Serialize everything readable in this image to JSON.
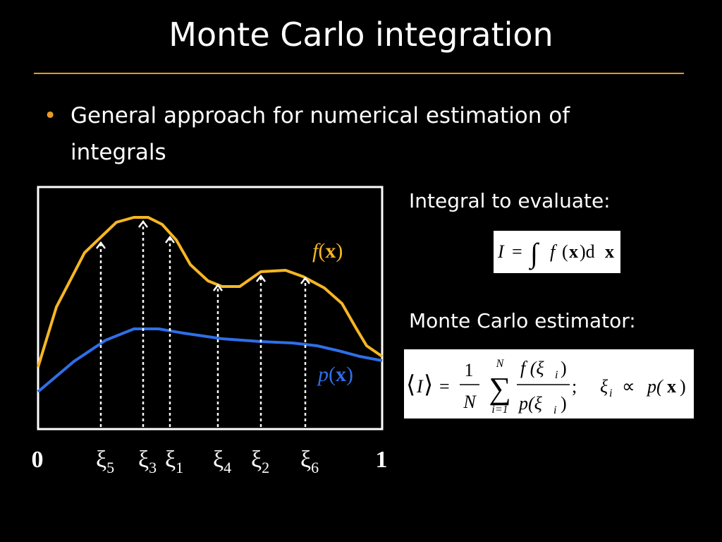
{
  "title": "Monte Carlo integration",
  "bullets": [
    "General approach for numerical estimation of integrals"
  ],
  "diagram": {
    "f_label": [
      "f",
      "(",
      "x",
      ")"
    ],
    "p_label": [
      "p",
      "(",
      "x",
      ")"
    ],
    "start": "0",
    "end": "1",
    "samples": [
      {
        "symbol": "ξ",
        "index": "5"
      },
      {
        "symbol": "ξ",
        "index": "3"
      },
      {
        "symbol": "ξ",
        "index": "1"
      },
      {
        "symbol": "ξ",
        "index": "4"
      },
      {
        "symbol": "ξ",
        "index": "2"
      },
      {
        "symbol": "ξ",
        "index": "6"
      }
    ]
  },
  "integral": {
    "label": "Integral to evaluate:",
    "formula": [
      "I",
      "=",
      "∫",
      "f",
      "(",
      "x",
      ")d",
      "x"
    ]
  },
  "estimator": {
    "label": "Monte Carlo estimator:",
    "lhs": [
      "⟨",
      "I",
      "⟩",
      "="
    ],
    "fraction": {
      "num": "1",
      "den": "N"
    },
    "sum": {
      "symbol": "∑",
      "upper": "N",
      "lower": "i=1"
    },
    "ratio": {
      "num": [
        "f (ξ",
        "i",
        ")"
      ],
      "den": [
        "p(ξ",
        "i",
        ")"
      ]
    },
    "sep": ";",
    "condition": [
      "ξ",
      "i",
      "∝",
      "p(",
      "x",
      ")"
    ]
  }
}
